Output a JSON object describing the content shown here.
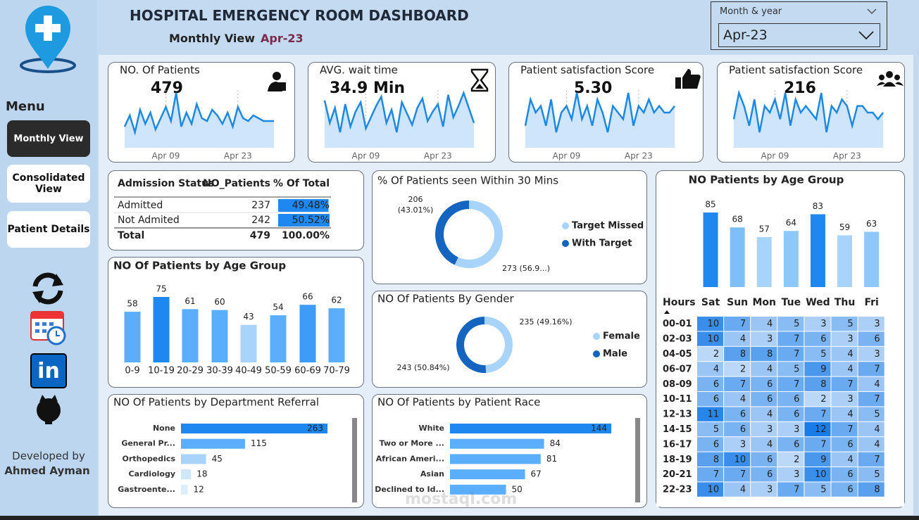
{
  "header": {
    "title": "HOSPITAL EMERGENCY ROOM DASHBOARD",
    "view_label": "Monthly View",
    "period": "Apr-23"
  },
  "filter": {
    "label": "Month & year",
    "value": "Apr-23"
  },
  "menu": {
    "title": "Menu",
    "items": [
      "Monthly View",
      "Consolidated View",
      "Patient Details"
    ]
  },
  "footer": {
    "label": "Developed by",
    "author": "Ahmed Ayman"
  },
  "watermark": "mostaql.com",
  "kpi_days": [
    1,
    2,
    3,
    4,
    5,
    6,
    7,
    8,
    9,
    10,
    11,
    12,
    13,
    14,
    15,
    16,
    17,
    18,
    19,
    20,
    21,
    22,
    23,
    24,
    25,
    26,
    27,
    28,
    29,
    30
  ],
  "kpi_xticks": [
    {
      "value": 9,
      "label": "Apr 09"
    },
    {
      "value": 23,
      "label": "Apr 23"
    }
  ],
  "kpis": [
    {
      "title": "NO. Of Patients",
      "value": "479",
      "color": "#1e88e5",
      "trend": [
        14,
        18,
        12,
        20,
        15,
        19,
        13,
        17,
        21,
        16,
        26,
        14,
        19,
        15,
        22,
        17,
        16,
        20,
        18,
        15,
        19,
        14,
        21,
        17,
        16,
        18,
        17,
        16,
        16,
        16
      ]
    },
    {
      "title": "AVG. wait time",
      "value": "34.9 Min",
      "color": "#1e88e5",
      "trend": [
        42,
        30,
        38,
        25,
        40,
        28,
        36,
        41,
        27,
        33,
        39,
        44,
        30,
        37,
        25,
        41,
        35,
        29,
        38,
        43,
        31,
        36,
        40,
        28,
        45,
        33,
        39,
        46,
        38,
        30
      ]
    },
    {
      "title": "Patient satisfaction Score",
      "value": "5.30",
      "color": "#1e88e5",
      "trend": [
        3,
        7,
        5,
        6,
        3,
        7,
        2,
        5,
        6,
        4,
        8,
        4,
        6,
        3,
        7,
        5,
        2,
        6,
        5,
        4,
        8,
        3,
        6,
        5,
        7,
        5,
        6,
        5,
        5,
        6
      ]
    },
    {
      "title": "Patient satisfaction Score",
      "value": "216",
      "color": "#1e88e5",
      "trend": [
        4,
        8,
        6,
        3,
        7,
        2,
        6,
        5,
        7,
        4,
        8,
        3,
        7,
        5,
        6,
        5,
        4,
        8,
        2,
        6,
        5,
        7,
        6,
        3,
        6,
        6,
        5,
        5,
        4,
        5
      ]
    }
  ],
  "admission": {
    "headers": [
      "Admission Status",
      "NO_Patients",
      "% Of Total"
    ],
    "bar_color": "#1e88f0",
    "rows": [
      {
        "status": "Admitted",
        "patients": 237,
        "percent": 49.48,
        "percent_label": "49.48%"
      },
      {
        "status": "Not Admited",
        "patients": 242,
        "percent": 50.52,
        "percent_label": "50.52%"
      }
    ],
    "total": {
      "status": "Total",
      "patients": 479,
      "percent_label": "100.00%"
    }
  },
  "within30": {
    "type": "pie",
    "title": "% Of Patients seen Within 30 Mins",
    "series": [
      {
        "name": "Target Missed",
        "color": "#a8d4fb",
        "value": 273,
        "value_label": "273 (56.9...)"
      },
      {
        "name": "With Target",
        "color": "#1565c0",
        "value": 206,
        "value_label": "206 (43.01%)"
      }
    ]
  },
  "gender": {
    "type": "pie",
    "title": "NO Of Patients By Gender",
    "series": [
      {
        "name": "Female",
        "color": "#a8d4fb",
        "value": 235,
        "value_label": "235 (49.16%)"
      },
      {
        "name": "Male",
        "color": "#1565c0",
        "value": 243,
        "value_label": "243 (50.84%)"
      }
    ]
  },
  "age_group": {
    "type": "bar",
    "title": "NO Of Patients by Age Group",
    "categories": [
      "0-9",
      "10-19",
      "20-29",
      "30-39",
      "40-49",
      "50-59",
      "60-69",
      "70-79"
    ],
    "values": [
      58,
      75,
      61,
      60,
      43,
      54,
      66,
      62
    ],
    "colors": [
      "#5aaefc",
      "#1e88f0",
      "#5aaefc",
      "#5aaefc",
      "#a8d4fb",
      "#5aaefc",
      "#3d9cf7",
      "#5aaefc"
    ]
  },
  "weekday": {
    "type": "bar",
    "title": "NO Patients by Age Group",
    "categories": [
      "Sat",
      "Sun",
      "Mon",
      "Tue",
      "Wed",
      "Thu",
      "Fri"
    ],
    "values": [
      85,
      68,
      57,
      64,
      83,
      59,
      63
    ],
    "colors": [
      "#1e88f0",
      "#7fbff9",
      "#a8d4fb",
      "#8ec7fa",
      "#1e88f0",
      "#a8d4fb",
      "#8ec7fa"
    ]
  },
  "heatmap": {
    "row_header": "Hours",
    "rows": [
      "00-01",
      "02-03",
      "04-05",
      "06-07",
      "08-09",
      "10-11",
      "12-13",
      "14-15",
      "16-17",
      "18-19",
      "20-21",
      "22-23"
    ],
    "values": [
      [
        10,
        7,
        4,
        5,
        3,
        5,
        3
      ],
      [
        10,
        4,
        3,
        7,
        6,
        3,
        6
      ],
      [
        2,
        8,
        8,
        7,
        5,
        4,
        3
      ],
      [
        4,
        2,
        4,
        5,
        9,
        4,
        7
      ],
      [
        6,
        7,
        6,
        7,
        8,
        7,
        4
      ],
      [
        6,
        4,
        6,
        6,
        2,
        3,
        7
      ],
      [
        11,
        6,
        4,
        6,
        7,
        4,
        5
      ],
      [
        5,
        6,
        3,
        3,
        12,
        7,
        4
      ],
      [
        6,
        3,
        4,
        6,
        7,
        6,
        4
      ],
      [
        8,
        10,
        6,
        2,
        9,
        4,
        7
      ],
      [
        7,
        7,
        6,
        3,
        10,
        6,
        5
      ],
      [
        10,
        4,
        3,
        7,
        5,
        6,
        8
      ]
    ]
  },
  "department": {
    "type": "hbar",
    "title": "NO Of Patients by Department Referral",
    "categories": [
      "None",
      "General Pr...",
      "Orthopedics",
      "Cardiology",
      "Gastroente..."
    ],
    "values": [
      263,
      115,
      45,
      18,
      12
    ],
    "colors": [
      "#1e88f0",
      "#5aaefc",
      "#a8d4fb",
      "#cfe6fc",
      "#dcedfd"
    ]
  },
  "race": {
    "type": "hbar",
    "title": "NO Of Patients by Patient Race",
    "categories": [
      "White",
      "Two or More ...",
      "African Ameri...",
      "Asian",
      "Declined to Id..."
    ],
    "values": [
      144,
      84,
      81,
      67,
      50
    ],
    "colors": [
      "#1e88f0",
      "#5aaefc",
      "#5aaefc",
      "#5aaefc",
      "#5aaefc"
    ]
  }
}
